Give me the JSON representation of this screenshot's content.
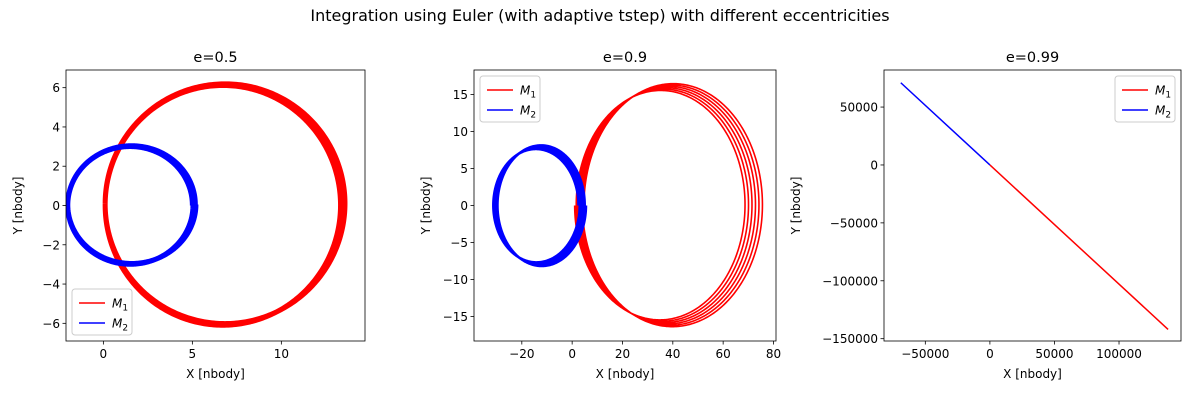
{
  "figure": {
    "suptitle": "Integration using Euler (with adaptive tstep) with different eccentricities",
    "colors": {
      "M1": "#ff0000",
      "M2": "#0000ff"
    }
  },
  "chart_data": [
    {
      "type": "line",
      "title": "e=0.5",
      "xlabel": "X [nbody]",
      "ylabel": "Y [nbody]",
      "xlim": [
        -2.1,
        14.7
      ],
      "ylim": [
        -6.9,
        6.9
      ],
      "xticks": [
        0,
        5,
        10
      ],
      "yticks": [
        -6,
        -4,
        -2,
        0,
        2,
        4,
        6
      ],
      "xtick_labels": [
        "0",
        "5",
        "10"
      ],
      "ytick_labels": [
        "−6",
        "−4",
        "−2",
        "0",
        "2",
        "4",
        "6"
      ],
      "legend": {
        "placement": "lower left",
        "entries": [
          "M1",
          "M2"
        ]
      },
      "series": [
        {
          "name": "M1",
          "color": "#ff0000",
          "kind": "ellipse_band",
          "center_start": [
            6.7,
            0.0
          ],
          "center_end": [
            6.85,
            0.1
          ],
          "rx_start": 6.6,
          "rx_end": 6.75,
          "ry": 6.1,
          "start_x": 0.0,
          "turns": 6,
          "width": 5
        },
        {
          "name": "M2",
          "color": "#0000ff",
          "kind": "ellipse_band",
          "center_start": [
            1.5,
            0.0
          ],
          "center_end": [
            1.6,
            0.05
          ],
          "rx_start": 3.5,
          "rx_end": 3.6,
          "ry": 3.0,
          "start_x": 5.0,
          "turns": 6,
          "width": 5
        }
      ]
    },
    {
      "type": "line",
      "title": "e=0.9",
      "xlabel": "X [nbody]",
      "ylabel": "Y [nbody]",
      "xlim": [
        -39,
        81
      ],
      "ylim": [
        -18.3,
        18.3
      ],
      "xticks": [
        -20,
        0,
        20,
        40,
        60,
        80
      ],
      "yticks": [
        -15,
        -10,
        -5,
        0,
        5,
        10,
        15
      ],
      "xtick_labels": [
        "−20",
        "0",
        "20",
        "40",
        "60",
        "80"
      ],
      "ytick_labels": [
        "−15",
        "−10",
        "−5",
        "0",
        "5",
        "10",
        "15"
      ],
      "legend": {
        "placement": "upper left",
        "entries": [
          "M1",
          "M2"
        ]
      },
      "series": [
        {
          "name": "M1",
          "color": "#ff0000",
          "kind": "ellipse_band",
          "center_start": [
            34.5,
            0.0
          ],
          "center_end": [
            40.5,
            0.0
          ],
          "rx_start": 33.5,
          "rx_end": 35.8,
          "ry_start": 15.4,
          "ry_end": 16.5,
          "start_x": 0.5,
          "turns": 6,
          "width": 1.6
        },
        {
          "name": "M2",
          "color": "#0000ff",
          "kind": "ellipse_band",
          "center_start": [
            -14.5,
            0.0
          ],
          "center_end": [
            -12.0,
            0.0
          ],
          "rx_start": 17.0,
          "rx_end": 17.5,
          "ry_start": 7.6,
          "ry_end": 8.2,
          "start_x": 4.5,
          "turns": 6,
          "width": 2.5
        }
      ]
    },
    {
      "type": "line",
      "title": "e=0.99",
      "xlabel": "X [nbody]",
      "ylabel": "Y [nbody]",
      "xlim": [
        -82000,
        148000
      ],
      "ylim": [
        -152000,
        82000
      ],
      "xticks": [
        -50000,
        0,
        50000,
        100000
      ],
      "yticks": [
        -150000,
        -100000,
        -50000,
        0,
        50000
      ],
      "xtick_labels": [
        "−50000",
        "0",
        "50000",
        "100000"
      ],
      "ytick_labels": [
        "−150000",
        "−100000",
        "−50000",
        "0",
        "50000"
      ],
      "legend": {
        "placement": "upper right",
        "entries": [
          "M1",
          "M2"
        ]
      },
      "series": [
        {
          "name": "M1",
          "color": "#ff0000",
          "kind": "polyline",
          "x": [
            0,
            138000
          ],
          "y": [
            0,
            -142000
          ],
          "width": 1.5
        },
        {
          "name": "M2",
          "color": "#0000ff",
          "kind": "polyline",
          "x": [
            0,
            -69000
          ],
          "y": [
            0,
            71000
          ],
          "width": 1.5
        }
      ]
    }
  ]
}
